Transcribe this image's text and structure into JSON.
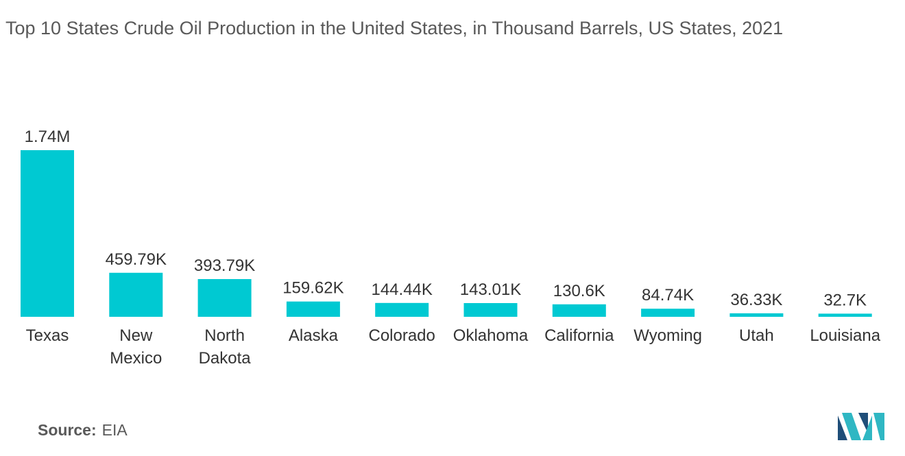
{
  "title": "Top 10 States Crude Oil Production in the United States, in Thousand Barrels, US States, 2021",
  "source": {
    "label": "Source:",
    "value": "EIA"
  },
  "colors": {
    "bar": "#00C9D2",
    "logo_dark": "#1F4E79",
    "logo_light": "#2FB7C3"
  },
  "chart_data": {
    "type": "bar",
    "title": "Top 10 States Crude Oil Production in the United States, in Thousand Barrels, US States, 2021",
    "categories": [
      [
        "Texas"
      ],
      [
        "New",
        "Mexico"
      ],
      [
        "North",
        "Dakota"
      ],
      [
        "Alaska"
      ],
      [
        "Colorado"
      ],
      [
        "Oklahoma"
      ],
      [
        "California"
      ],
      [
        "Wyoming"
      ],
      [
        "Utah"
      ],
      [
        "Louisiana"
      ]
    ],
    "values": [
      1740000,
      459790,
      393790,
      159620,
      144440,
      143010,
      130600,
      84740,
      36330,
      32700
    ],
    "value_labels": [
      "1.74M",
      "459.79K",
      "393.79K",
      "159.62K",
      "144.44K",
      "143.01K",
      "130.6K",
      "84.74K",
      "36.33K",
      "32.7K"
    ],
    "ylim": [
      0,
      1740000
    ],
    "grid": false,
    "legend": "none"
  }
}
